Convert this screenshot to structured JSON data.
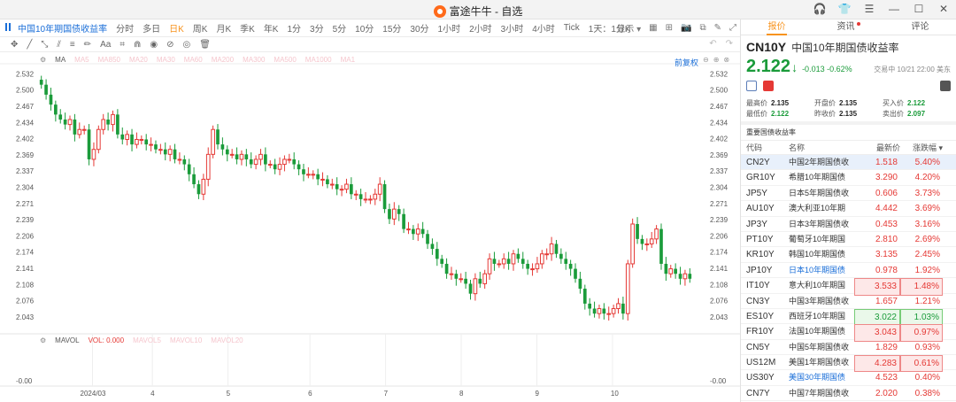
{
  "window": {
    "app_title": "富途牛牛 - 自选",
    "controls": [
      "headset-icon",
      "shirt-icon",
      "menu-icon",
      "minimize-icon",
      "maximize-icon",
      "close-icon"
    ]
  },
  "toolbar1": {
    "symbol": "中国10年期国债收益率",
    "periods": [
      "分时",
      "多日",
      "日K",
      "周K",
      "月K",
      "季K",
      "年K",
      "1分",
      "3分",
      "5分",
      "10分",
      "15分",
      "30分",
      "1小时",
      "2小时",
      "3小时",
      "4小时",
      "Tick",
      "1天：1分K"
    ],
    "active_period": "日K",
    "display_label": "显示"
  },
  "toolbar2": {
    "tools": [
      "move-icon",
      "line-icon",
      "ray-icon",
      "channel-icon",
      "fib-icon",
      "pen-icon",
      "text-icon",
      "magnet-icon",
      "eye-icon",
      "lock-icon",
      "trash-icon"
    ]
  },
  "chart": {
    "legend": {
      "label": "MA",
      "items": [
        "MA5",
        "MA850",
        "MA20",
        "MA30",
        "MA60",
        "MA200",
        "MA300",
        "MA500",
        "MA1000",
        "MA1"
      ],
      "color": "#f5c6cd"
    },
    "fuquan": "前复权",
    "vol_legend": {
      "label": "MAVOL",
      "vol_label": "VOL:",
      "vol_value": "0.000",
      "items": [
        "MAVOL5",
        "MAVOL10",
        "MAVOL20"
      ]
    },
    "vol_axis_label": "-0.00",
    "y_ticks": [
      "2.532",
      "2.500",
      "2.467",
      "2.434",
      "2.402",
      "2.369",
      "2.337",
      "2.304",
      "2.271",
      "2.239",
      "2.206",
      "2.174",
      "2.141",
      "2.108",
      "2.076",
      "2.043"
    ],
    "x_ticks": [
      "2024/03",
      "4",
      "5",
      "6",
      "7",
      "8",
      "9",
      "10"
    ]
  },
  "chart_data": {
    "type": "candlestick",
    "title": "中国10年期国债收益率",
    "ylim": [
      2.02,
      2.545
    ],
    "x_categories": [
      "2024/03",
      "4",
      "5",
      "6",
      "7",
      "8",
      "9",
      "10"
    ],
    "closes": [
      2.51,
      2.49,
      2.47,
      2.45,
      2.44,
      2.43,
      2.44,
      2.41,
      2.42,
      2.42,
      2.36,
      2.38,
      2.42,
      2.44,
      2.43,
      2.45,
      2.41,
      2.4,
      2.41,
      2.39,
      2.4,
      2.4,
      2.39,
      2.39,
      2.38,
      2.38,
      2.37,
      2.38,
      2.36,
      2.36,
      2.35,
      2.33,
      2.31,
      2.29,
      2.32,
      2.37,
      2.42,
      2.39,
      2.38,
      2.37,
      2.37,
      2.36,
      2.37,
      2.36,
      2.35,
      2.36,
      2.37,
      2.35,
      2.35,
      2.34,
      2.35,
      2.36,
      2.36,
      2.35,
      2.34,
      2.33,
      2.33,
      2.33,
      2.32,
      2.32,
      2.31,
      2.31,
      2.3,
      2.3,
      2.31,
      2.29,
      2.29,
      2.28,
      2.28,
      2.28,
      2.29,
      2.31,
      2.26,
      2.24,
      2.26,
      2.25,
      2.22,
      2.22,
      2.21,
      2.22,
      2.21,
      2.19,
      2.18,
      2.16,
      2.15,
      2.13,
      2.13,
      2.12,
      2.12,
      2.11,
      2.09,
      2.12,
      2.11,
      2.13,
      2.16,
      2.15,
      2.15,
      2.16,
      2.15,
      2.17,
      2.16,
      2.15,
      2.14,
      2.14,
      2.15,
      2.17,
      2.17,
      2.19,
      2.17,
      2.16,
      2.15,
      2.14,
      2.12,
      2.1,
      2.07,
      2.06,
      2.05,
      2.06,
      2.05,
      2.05,
      2.06,
      2.07,
      2.05,
      2.15,
      2.23,
      2.2,
      2.19,
      2.19,
      2.2,
      2.22,
      2.15,
      2.13,
      2.14,
      2.13,
      2.12,
      2.13,
      2.12
    ]
  },
  "panel": {
    "tabs": [
      "报价",
      "资讯",
      "评论"
    ],
    "active_tab": "报价",
    "symbol": "CN10Y",
    "name": "中国10年期国债收益率",
    "price": "2.122",
    "change": "-0.013",
    "change_pct": "-0.62%",
    "timestamp": "交易中 10/21 22:00 美东",
    "quotes": [
      {
        "label": "最高价",
        "value": "2.135",
        "green": false
      },
      {
        "label": "开盘价",
        "value": "2.135",
        "green": false
      },
      {
        "label": "买入价",
        "value": "2.122",
        "green": true
      },
      {
        "label": "最低价",
        "value": "2.122",
        "green": true
      },
      {
        "label": "昨收价",
        "value": "2.135",
        "green": false
      },
      {
        "label": "卖出价",
        "value": "2.097",
        "green": true
      }
    ],
    "section_title": "重要国债收益率",
    "table_headers": [
      "代码",
      "名称",
      "最新价",
      "涨跌幅"
    ],
    "rows": [
      {
        "code": "CN2Y",
        "name": "中国2年期国债收",
        "price": "1.518",
        "pct": "5.40%",
        "sel": true,
        "blue": false,
        "vbox": "",
        "pbox": ""
      },
      {
        "code": "GR10Y",
        "name": "希腊10年期国债",
        "price": "3.290",
        "pct": "4.20%",
        "sel": false,
        "blue": false,
        "vbox": "",
        "pbox": ""
      },
      {
        "code": "JP5Y",
        "name": "日本5年期国债收",
        "price": "0.606",
        "pct": "3.73%",
        "sel": false,
        "blue": false,
        "vbox": "",
        "pbox": ""
      },
      {
        "code": "AU10Y",
        "name": "澳大利亚10年期",
        "price": "4.442",
        "pct": "3.69%",
        "sel": false,
        "blue": false,
        "vbox": "",
        "pbox": ""
      },
      {
        "code": "JP3Y",
        "name": "日本3年期国债收",
        "price": "0.453",
        "pct": "3.16%",
        "sel": false,
        "blue": false,
        "vbox": "",
        "pbox": ""
      },
      {
        "code": "PT10Y",
        "name": "葡萄牙10年期国",
        "price": "2.810",
        "pct": "2.69%",
        "sel": false,
        "blue": false,
        "vbox": "",
        "pbox": ""
      },
      {
        "code": "KR10Y",
        "name": "韩国10年期国债",
        "price": "3.135",
        "pct": "2.45%",
        "sel": false,
        "blue": false,
        "vbox": "",
        "pbox": ""
      },
      {
        "code": "JP10Y",
        "name": "日本10年期国债",
        "price": "0.978",
        "pct": "1.92%",
        "sel": false,
        "blue": true,
        "vbox": "",
        "pbox": ""
      },
      {
        "code": "IT10Y",
        "name": "意大利10年期国",
        "price": "3.533",
        "pct": "1.48%",
        "sel": false,
        "blue": false,
        "vbox": "red",
        "pbox": "red"
      },
      {
        "code": "CN3Y",
        "name": "中国3年期国债收",
        "price": "1.657",
        "pct": "1.21%",
        "sel": false,
        "blue": false,
        "vbox": "",
        "pbox": ""
      },
      {
        "code": "ES10Y",
        "name": "西班牙10年期国",
        "price": "3.022",
        "pct": "1.03%",
        "sel": false,
        "blue": false,
        "vbox": "green",
        "pbox": "green"
      },
      {
        "code": "FR10Y",
        "name": "法国10年期国债",
        "price": "3.043",
        "pct": "0.97%",
        "sel": false,
        "blue": false,
        "vbox": "red",
        "pbox": "red"
      },
      {
        "code": "CN5Y",
        "name": "中国5年期国债收",
        "price": "1.829",
        "pct": "0.93%",
        "sel": false,
        "blue": false,
        "vbox": "",
        "pbox": ""
      },
      {
        "code": "US12M",
        "name": "美国1年期国债收",
        "price": "4.283",
        "pct": "0.61%",
        "sel": false,
        "blue": false,
        "vbox": "red",
        "pbox": "red"
      },
      {
        "code": "US30Y",
        "name": "美国30年期国债",
        "price": "4.523",
        "pct": "0.40%",
        "sel": false,
        "blue": true,
        "vbox": "",
        "pbox": ""
      },
      {
        "code": "CN7Y",
        "name": "中国7年期国债收",
        "price": "2.020",
        "pct": "0.38%",
        "sel": false,
        "blue": false,
        "vbox": "",
        "pbox": ""
      }
    ]
  },
  "colors": {
    "up": "#e53935",
    "down": "#1a9b3a",
    "accent": "#f7931e",
    "link": "#1a6ed8"
  }
}
